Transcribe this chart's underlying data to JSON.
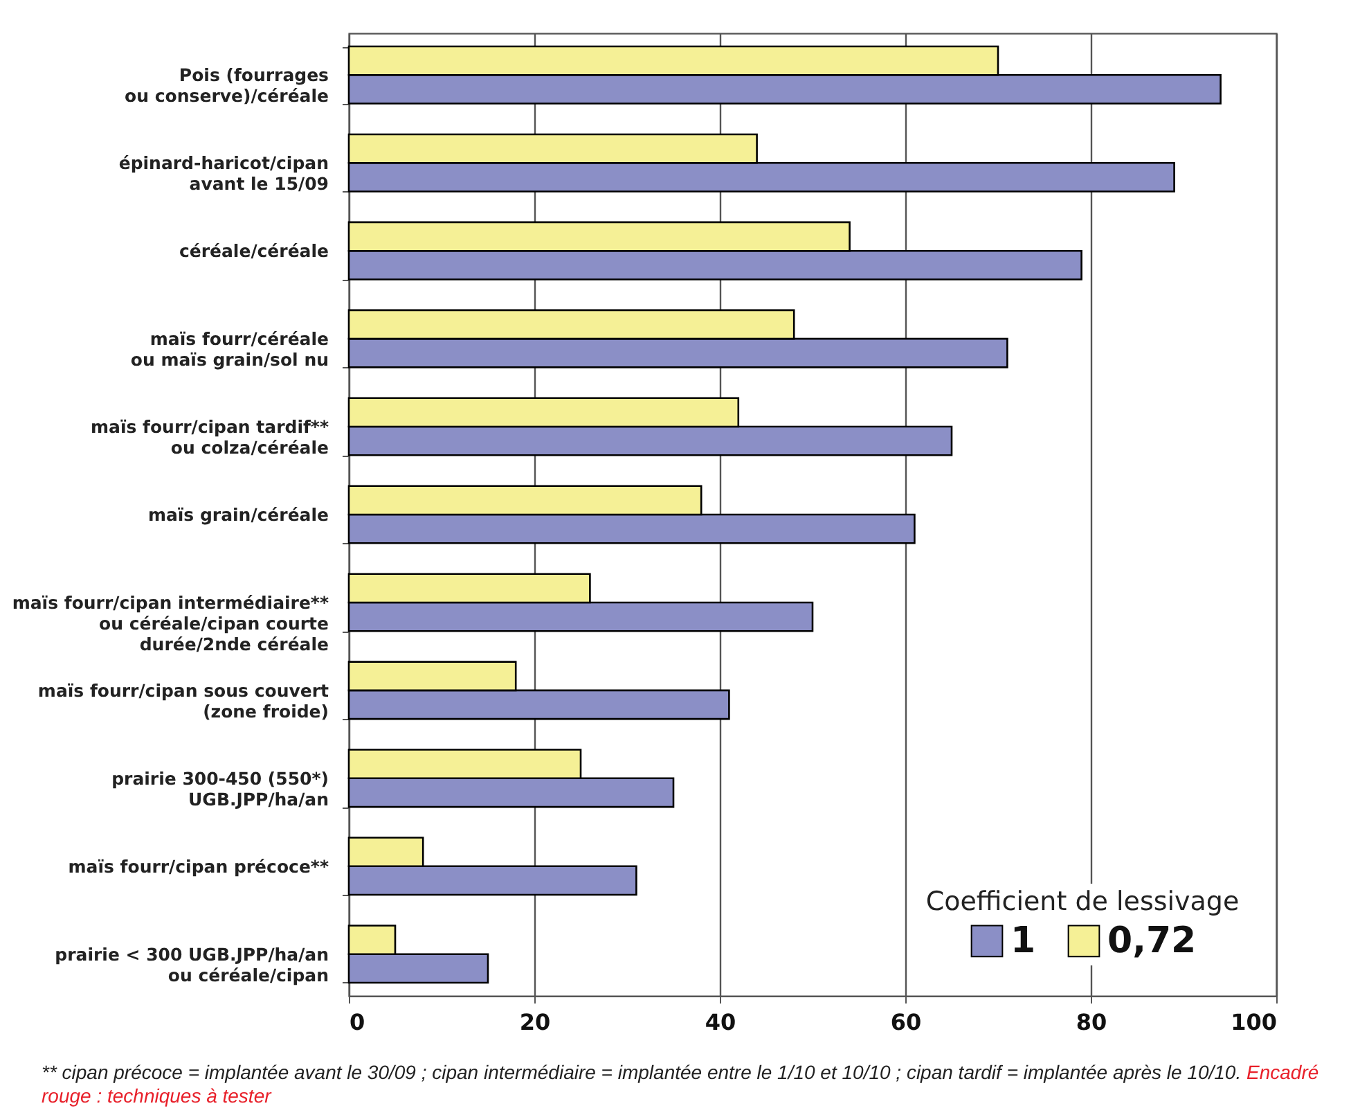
{
  "chart_data": {
    "type": "bar",
    "orientation": "horizontal",
    "categories": [
      "Pois (fourrages\nou conserve)/céréale",
      "épinard-haricot/cipan\navant le 15/09",
      "céréale/céréale",
      "maïs fourr/céréale\nou maïs grain/sol nu",
      "maïs fourr/cipan tardif**\nou colza/céréale",
      "maïs grain/céréale",
      "maïs fourr/cipan intermédiaire**\nou céréale/cipan courte\ndurée/2nde céréale",
      "maïs fourr/cipan sous couvert\n(zone froide)",
      "prairie 300-450 (550*)\nUGB.JPP/ha/an",
      "maïs fourr/cipan précoce**",
      "prairie < 300 UGB.JPP/ha/an\nou céréale/cipan"
    ],
    "series": [
      {
        "name": "1",
        "color": "#8b8fc6",
        "values": [
          94,
          89,
          79,
          71,
          65,
          61,
          50,
          41,
          35,
          31,
          15
        ]
      },
      {
        "name": "0,72",
        "color": "#f5f096",
        "values": [
          70,
          44,
          54,
          48,
          42,
          38,
          26,
          18,
          25,
          8,
          5
        ]
      }
    ],
    "xlim": [
      0,
      100
    ],
    "xticks": [
      0,
      20,
      40,
      60,
      80,
      100
    ],
    "grid": "x",
    "legend_title": "Coefficient de lessivage",
    "legend": "bottom right",
    "annotations": [
      "** cipan précoce = implantée avant le 30/09 ; cipan intermédiaire = implantée entre le 1/10 et 10/10 ; cipan tardif = implantée après le 10/10.",
      "Encadré rouge : techniques à tester"
    ]
  }
}
